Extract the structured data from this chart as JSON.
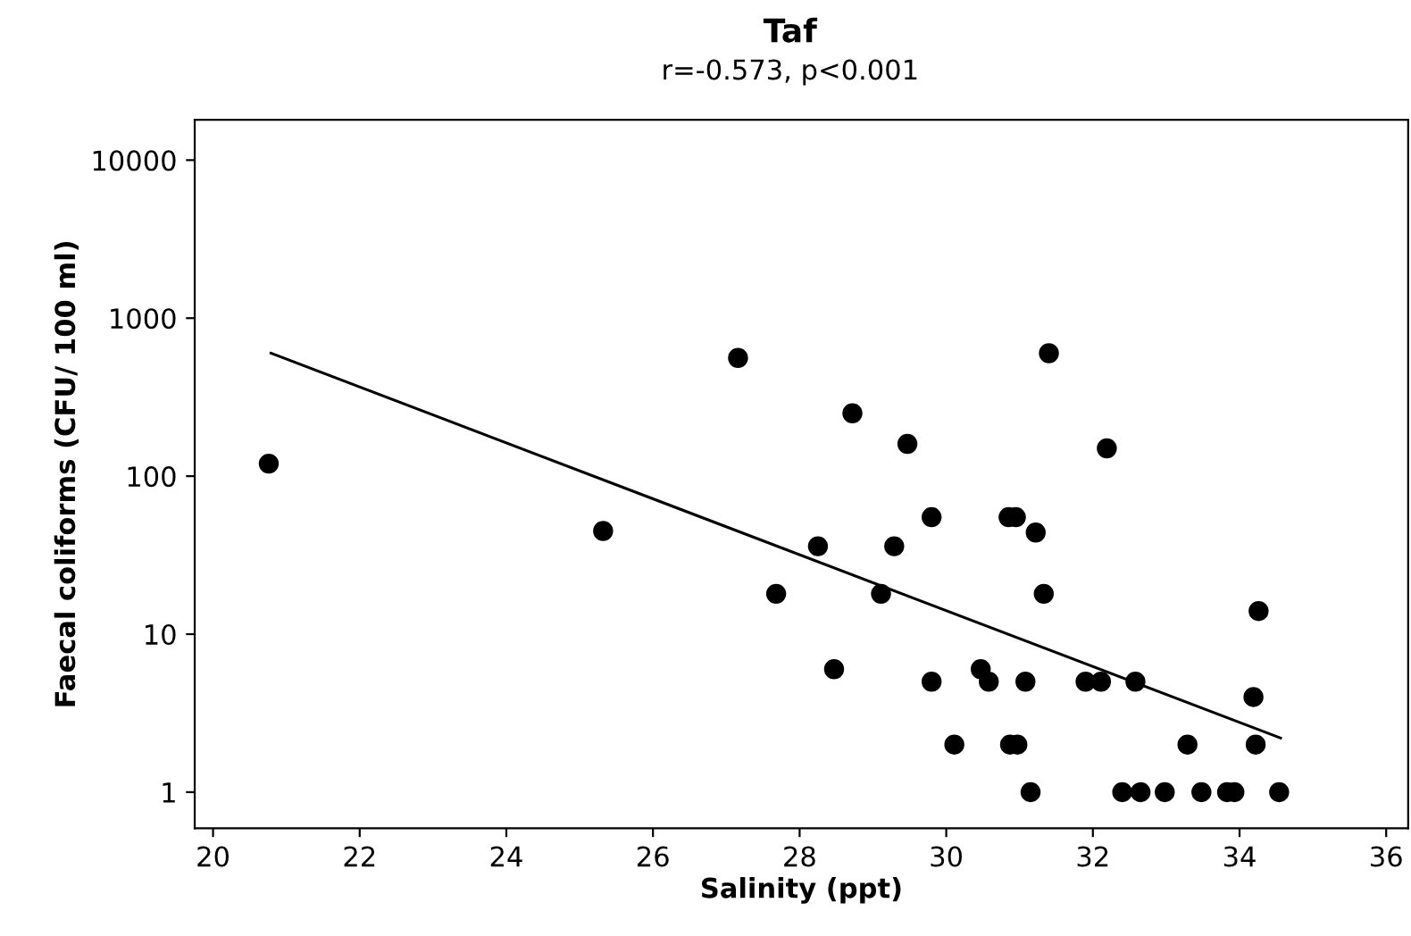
{
  "chart_data": {
    "type": "scatter",
    "title": "Taf",
    "subtitle": "r=-0.573, p<0.001",
    "xlabel": "Salinity (ppt)",
    "ylabel": "Faecal coliforms (CFU/ 100 ml)",
    "log": "y",
    "grid": false,
    "marker": "circle",
    "xlim": [
      19.75,
      36.3
    ],
    "xticks": [
      20,
      22,
      24,
      26,
      28,
      30,
      32,
      34,
      36
    ],
    "ylim": [
      0.59,
      18000
    ],
    "yticks": [
      1,
      10,
      100,
      1000,
      10000
    ],
    "series": [
      {
        "color": "#000000",
        "x": [
          20.76,
          25.32,
          27.16,
          27.68,
          28.25,
          28.47,
          28.72,
          29.11,
          29.29,
          29.47,
          29.8,
          29.8,
          30.11,
          30.47,
          30.58,
          30.85,
          30.95,
          30.87,
          30.97,
          31.08,
          31.15,
          31.22,
          31.33,
          31.4,
          31.9,
          32.11,
          32.19,
          32.4,
          32.58,
          32.65,
          32.98,
          33.29,
          33.48,
          33.83,
          33.93,
          34.19,
          34.22,
          34.26,
          34.54
        ],
        "values": [
          120,
          45,
          560,
          18,
          36,
          6,
          250,
          18,
          36,
          160,
          55,
          5,
          2,
          6,
          5,
          55,
          55,
          2,
          2,
          5,
          1,
          44,
          18,
          600,
          5,
          5,
          150,
          1,
          5,
          1,
          1,
          2,
          1,
          1,
          1,
          4,
          2,
          14,
          1
        ]
      },
      {
        "type": "line",
        "color": "#000000",
        "marker": "none",
        "line_style": "solid",
        "x": [
          20.79,
          34.56
        ],
        "values": [
          600,
          2.2
        ]
      }
    ]
  }
}
